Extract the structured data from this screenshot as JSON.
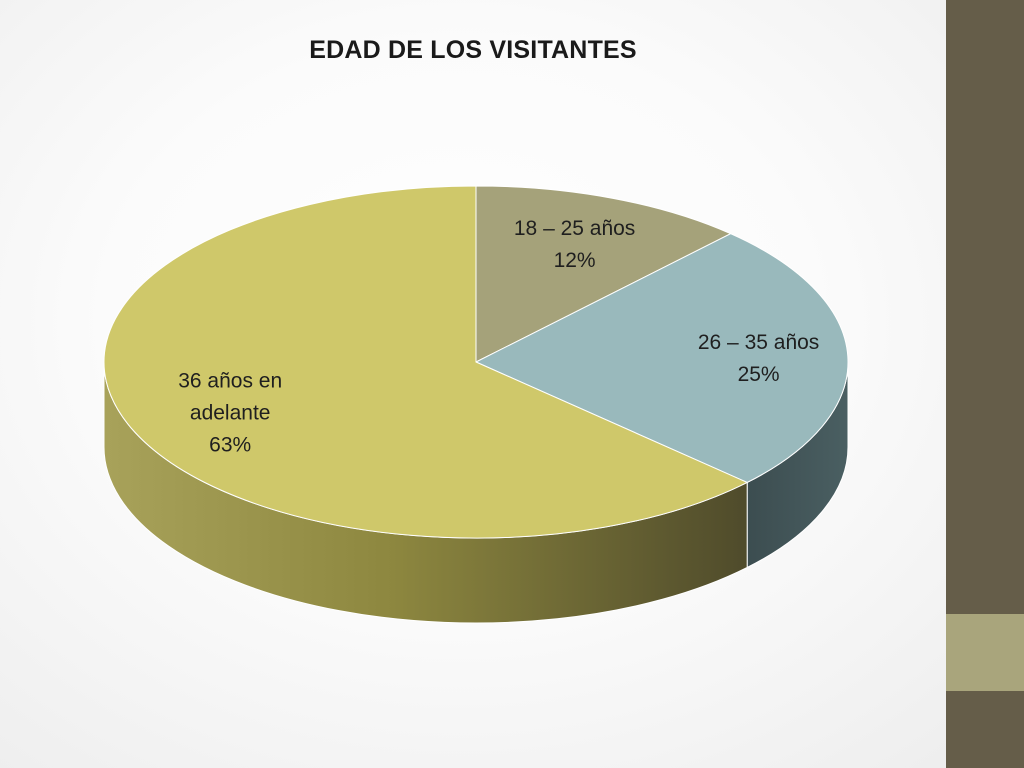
{
  "chart_data": {
    "type": "pie",
    "title": "EDAD DE LOS VISITANTES",
    "slices": [
      {
        "label": "18 – 25 años",
        "pct_label": "12%",
        "value": 12,
        "color": "#a5a27a",
        "side_color": "#6e6c4f"
      },
      {
        "label": "26 – 35 años",
        "pct_label": "25%",
        "value": 25,
        "color": "#99b9bc",
        "side_color": "#3e5053"
      },
      {
        "label": "36 años en adelante",
        "pct_label": "63%",
        "value": 63,
        "color": "#cfc86a",
        "side_color": "#8c8545"
      }
    ],
    "legend": "none"
  },
  "colors": {
    "sidebar": "#655d49",
    "sidebar_accent": "#a9a57c"
  }
}
